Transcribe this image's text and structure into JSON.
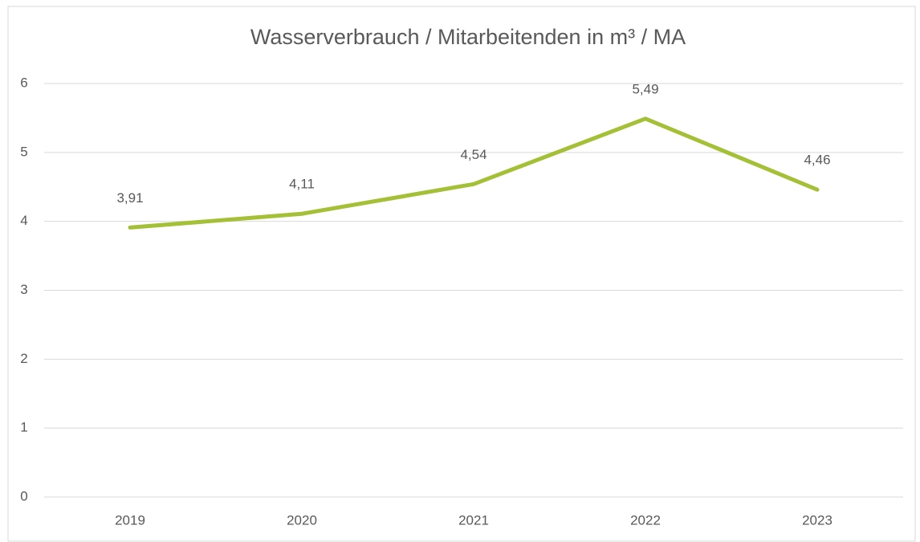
{
  "chart_data": {
    "type": "line",
    "title": "Wasserverbrauch / Mitarbeitenden in m³ / MA",
    "categories": [
      "2019",
      "2020",
      "2021",
      "2022",
      "2023"
    ],
    "values": [
      3.91,
      4.11,
      4.54,
      5.49,
      4.46
    ],
    "value_labels": [
      "3,91",
      "4,11",
      "4,54",
      "5,49",
      "4,46"
    ],
    "color": "#a3c037",
    "ylim": [
      0,
      6
    ],
    "yticks": [
      0,
      1,
      2,
      3,
      4,
      5,
      6
    ],
    "grid": true
  }
}
